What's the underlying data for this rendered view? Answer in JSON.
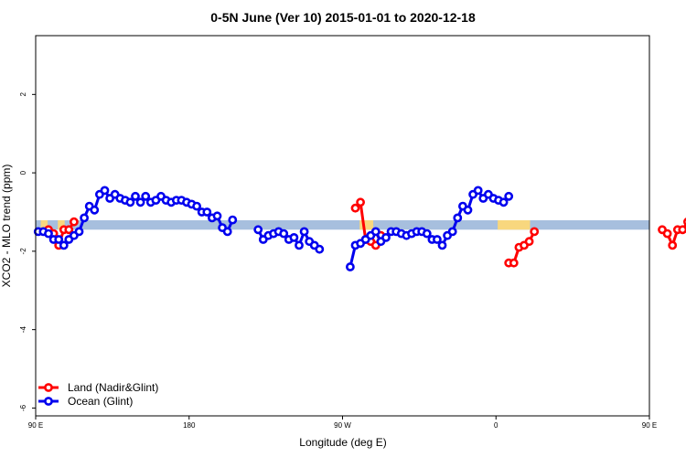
{
  "chart_data": {
    "type": "line",
    "title": "0-5N June (Ver 10)   2015-01-01 to 2020-12-18",
    "xlabel": "Longitude (deg E)",
    "ylabel": "XCO2 - MLO trend (ppm)",
    "xlim": [
      90,
      450
    ],
    "ylim": [
      -6.2,
      3.5
    ],
    "x_ticks": [
      {
        "value": 90,
        "label": "90 E"
      },
      {
        "value": 180,
        "label": "180"
      },
      {
        "value": 270,
        "label": "90 W"
      },
      {
        "value": 360,
        "label": "0"
      },
      {
        "value": 450,
        "label": "90 E"
      },
      {
        "value": 540,
        "label": "180"
      }
    ],
    "y_ticks": [
      {
        "value": -6,
        "label": "-6"
      },
      {
        "value": -4,
        "label": "-4"
      },
      {
        "value": -2,
        "label": "-2"
      },
      {
        "value": 0,
        "label": "0"
      },
      {
        "value": 2,
        "label": "2"
      }
    ],
    "grid": false,
    "legend_position": "bottom-left",
    "band": {
      "y_center": -1.33,
      "half_height": 0.12,
      "ocean_color": "#a7bfde",
      "land_color": "#f8d77e",
      "land_ranges": [
        [
          93,
          97
        ],
        [
          103,
          107
        ],
        [
          280,
          288
        ],
        [
          361,
          380
        ],
        [
          455,
          461
        ],
        [
          468,
          472
        ]
      ]
    },
    "series": [
      {
        "name": "Land (Nadir&Glint)",
        "color": "#ff0000",
        "segments": [
          [
            [
              97.5,
              -1.45
            ],
            [
              100.5,
              -1.55
            ],
            [
              103.5,
              -1.85
            ],
            [
              106.5,
              -1.45
            ],
            [
              109.5,
              -1.45
            ],
            [
              112.5,
              -1.25
            ]
          ],
          [
            [
              277.5,
              -0.9
            ],
            [
              280.5,
              -0.75
            ],
            [
              283.5,
              -1.7
            ],
            [
              286.5,
              -1.75
            ],
            [
              289.5,
              -1.85
            ],
            [
              292.5,
              -1.6
            ]
          ],
          [
            [
              367.5,
              -2.3
            ],
            [
              370.5,
              -2.3
            ],
            [
              373.5,
              -1.9
            ],
            [
              376.5,
              -1.85
            ],
            [
              379.5,
              -1.75
            ],
            [
              382.5,
              -1.5
            ]
          ],
          [
            [
              457.5,
              -1.45
            ],
            [
              460.5,
              -1.55
            ],
            [
              463.5,
              -1.85
            ],
            [
              466.5,
              -1.45
            ],
            [
              469.5,
              -1.45
            ],
            [
              472.5,
              -1.25
            ]
          ]
        ]
      },
      {
        "name": "Ocean (Glint)",
        "color": "#0000ee",
        "values": [
          [
            91.5,
            -1.5
          ],
          [
            94.5,
            -1.5
          ],
          [
            97.5,
            -1.55
          ],
          [
            100.5,
            -1.7
          ],
          [
            103.5,
            -1.7
          ],
          [
            106.5,
            -1.85
          ],
          [
            109.5,
            -1.7
          ],
          [
            112.5,
            -1.6
          ],
          [
            115.5,
            -1.5
          ],
          [
            118.5,
            -1.15
          ],
          [
            121.5,
            -0.85
          ],
          [
            124.5,
            -0.95
          ],
          [
            127.5,
            -0.55
          ],
          [
            130.5,
            -0.45
          ],
          [
            133.5,
            -0.65
          ],
          [
            136.5,
            -0.55
          ],
          [
            139.5,
            -0.65
          ],
          [
            142.5,
            -0.7
          ],
          [
            145.5,
            -0.75
          ],
          [
            148.5,
            -0.6
          ],
          [
            151.5,
            -0.75
          ],
          [
            154.5,
            -0.6
          ],
          [
            157.5,
            -0.75
          ],
          [
            160.5,
            -0.7
          ],
          [
            163.5,
            -0.6
          ],
          [
            166.5,
            -0.7
          ],
          [
            169.5,
            -0.75
          ],
          [
            172.5,
            -0.7
          ],
          [
            175.5,
            -0.7
          ],
          [
            178.5,
            -0.75
          ],
          [
            181.5,
            -0.8
          ],
          [
            184.5,
            -0.85
          ],
          [
            187.5,
            -1.0
          ],
          [
            190.5,
            -1.0
          ],
          [
            193.5,
            -1.15
          ],
          [
            196.5,
            -1.1
          ],
          [
            199.5,
            -1.4
          ],
          [
            202.5,
            -1.5
          ],
          [
            205.5,
            -1.2
          ],
          [
            208.5,
            null
          ],
          [
            211.5,
            null
          ],
          [
            214.5,
            null
          ],
          [
            217.5,
            null
          ],
          [
            220.5,
            -1.45
          ],
          [
            223.5,
            -1.7
          ],
          [
            226.5,
            -1.6
          ],
          [
            229.5,
            -1.55
          ],
          [
            232.5,
            -1.5
          ],
          [
            235.5,
            -1.55
          ],
          [
            238.5,
            -1.7
          ],
          [
            241.5,
            -1.65
          ],
          [
            244.5,
            -1.85
          ],
          [
            247.5,
            -1.5
          ],
          [
            250.5,
            -1.75
          ],
          [
            253.5,
            -1.85
          ],
          [
            256.5,
            -1.95
          ],
          [
            259.5,
            null
          ],
          [
            262.5,
            null
          ],
          [
            265.5,
            null
          ],
          [
            268.5,
            null
          ],
          [
            271.5,
            null
          ],
          [
            274.5,
            -2.4
          ],
          [
            277.5,
            -1.85
          ],
          [
            280.5,
            -1.8
          ],
          [
            283.5,
            -1.7
          ],
          [
            286.5,
            -1.6
          ],
          [
            289.5,
            -1.5
          ],
          [
            292.5,
            -1.75
          ],
          [
            295.5,
            -1.65
          ],
          [
            298.5,
            -1.5
          ],
          [
            301.5,
            -1.5
          ],
          [
            304.5,
            -1.55
          ],
          [
            307.5,
            -1.6
          ],
          [
            310.5,
            -1.55
          ],
          [
            313.5,
            -1.5
          ],
          [
            316.5,
            -1.5
          ],
          [
            319.5,
            -1.55
          ],
          [
            322.5,
            -1.7
          ],
          [
            325.5,
            -1.7
          ],
          [
            328.5,
            -1.85
          ],
          [
            331.5,
            -1.6
          ],
          [
            334.5,
            -1.5
          ],
          [
            337.5,
            -1.15
          ],
          [
            340.5,
            -0.85
          ],
          [
            343.5,
            -0.95
          ],
          [
            346.5,
            -0.55
          ],
          [
            349.5,
            -0.45
          ],
          [
            352.5,
            -0.65
          ],
          [
            355.5,
            -0.55
          ],
          [
            358.5,
            -0.65
          ],
          [
            361.5,
            -0.7
          ],
          [
            364.5,
            -0.75
          ],
          [
            367.5,
            -0.6
          ]
        ]
      }
    ]
  }
}
